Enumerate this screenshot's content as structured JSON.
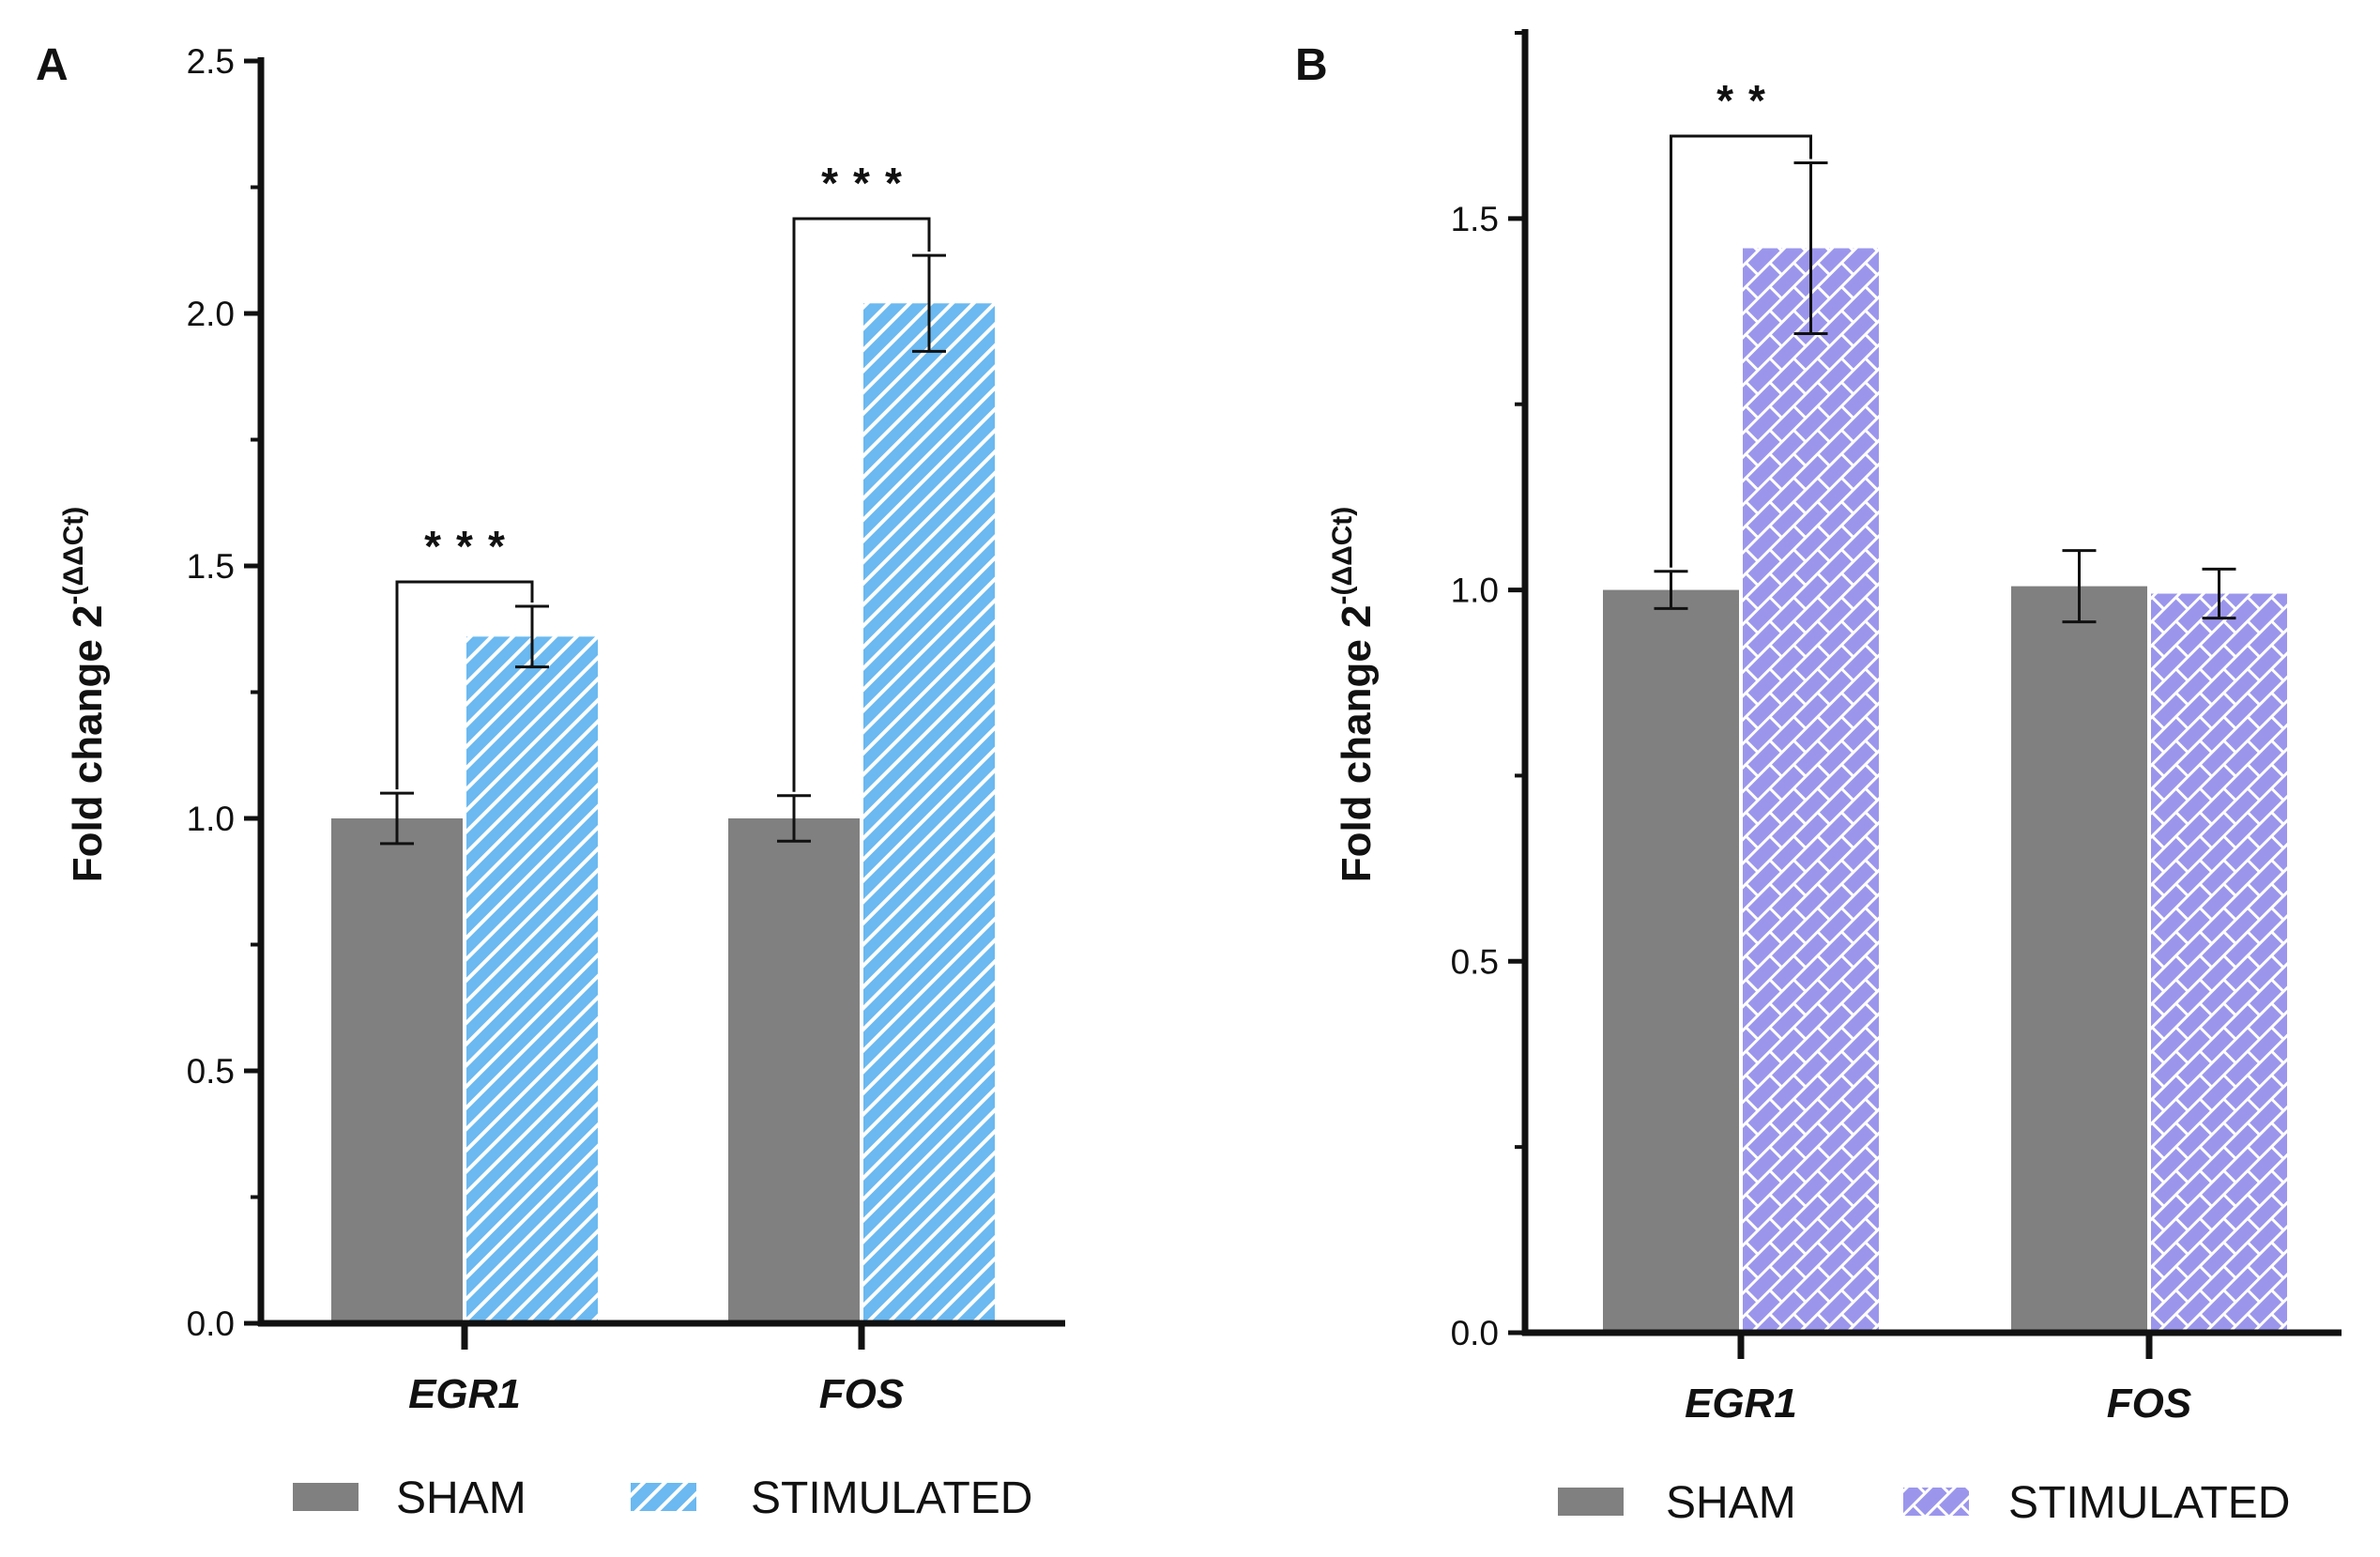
{
  "chart_data": [
    {
      "panel": "A",
      "type": "bar",
      "categories": [
        "EGR1",
        "FOS"
      ],
      "series": [
        {
          "name": "SHAM",
          "values": [
            1.0,
            1.0
          ],
          "errors": [
            0.05,
            0.045
          ],
          "color": "#808080",
          "pattern": "solid"
        },
        {
          "name": "STIMULATED",
          "values": [
            1.36,
            2.02
          ],
          "errors": [
            0.06,
            0.095
          ],
          "color": "#6bb9f0",
          "pattern": "diagonal-stripes"
        }
      ],
      "significance": [
        {
          "category": "EGR1",
          "label": "***"
        },
        {
          "category": "FOS",
          "label": "***"
        }
      ],
      "ylabel": "Fold change 2",
      "ylabel_superscript": "-(ΔΔCt)",
      "ylim": [
        0,
        2.5
      ],
      "yticks": [
        "0.0",
        "0.5",
        "1.0",
        "1.5",
        "2.0",
        "2.5"
      ],
      "legend": [
        "SHAM",
        "STIMULATED"
      ]
    },
    {
      "panel": "B",
      "type": "bar",
      "categories": [
        "EGR1",
        "FOS"
      ],
      "series": [
        {
          "name": "SHAM",
          "values": [
            1.0,
            1.005
          ],
          "errors": [
            0.025,
            0.048
          ],
          "color": "#808080",
          "pattern": "solid"
        },
        {
          "name": "STIMULATED",
          "values": [
            1.46,
            0.995
          ],
          "errors": [
            0.115,
            0.033
          ],
          "color": "#9b96ec",
          "pattern": "brick"
        }
      ],
      "significance": [
        {
          "category": "EGR1",
          "label": "**"
        }
      ],
      "ylabel": "Fold change 2",
      "ylabel_superscript": "-(ΔΔCt)",
      "ylim": [
        0,
        1.75
      ],
      "yticks": [
        "0.0",
        "0.5",
        "1.0",
        "1.5"
      ],
      "legend": [
        "SHAM",
        "STIMULATED"
      ]
    }
  ]
}
